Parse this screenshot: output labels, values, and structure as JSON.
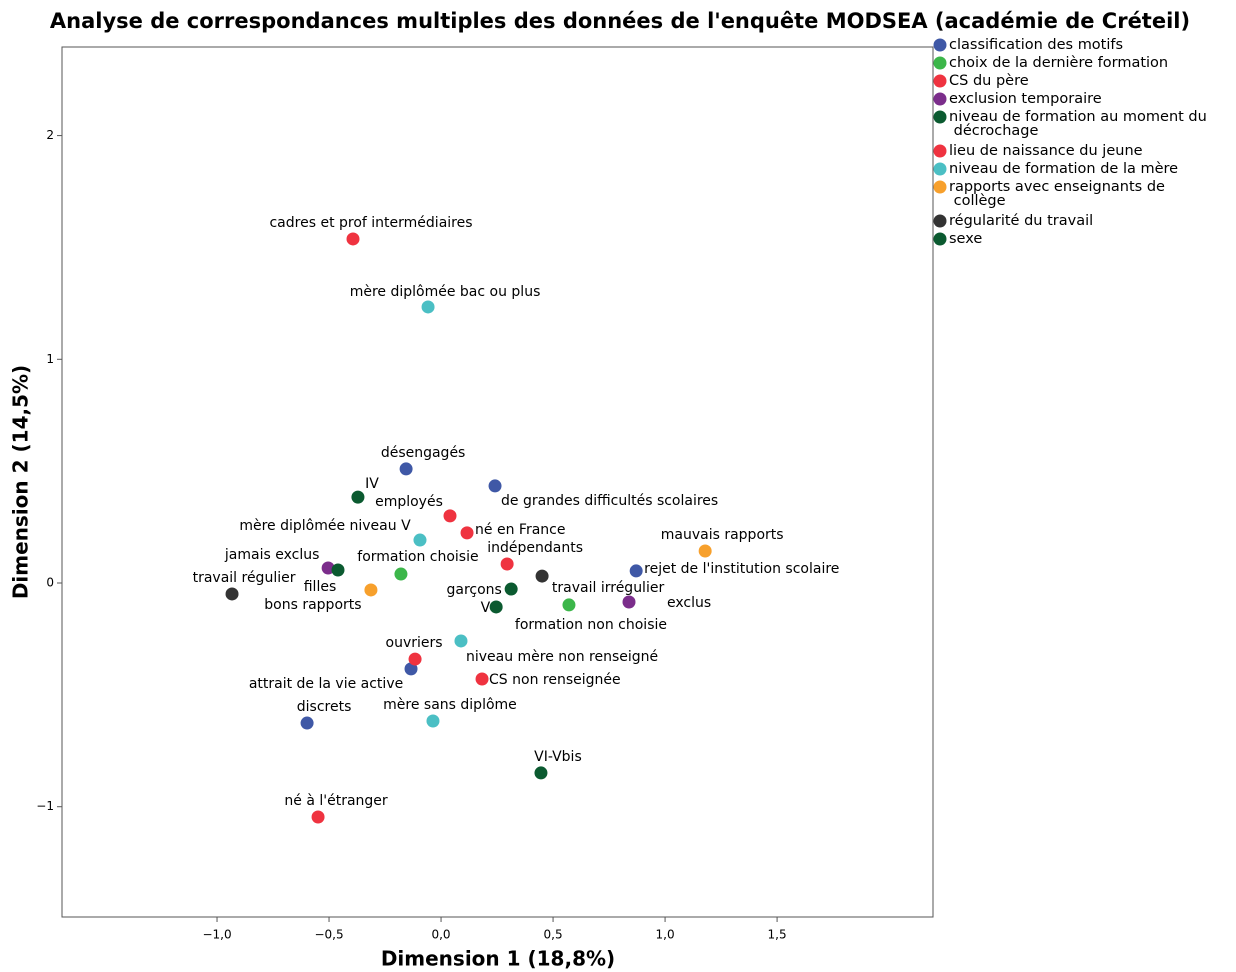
{
  "chart_data": {
    "type": "scatter",
    "title": "Analyse de correspondances multiples des données de l'enquête MODSEA (académie de Créteil)",
    "x_label": "Dimension 1 (18,8%)",
    "y_label": "Dimension 2 (14,5%)",
    "xlim": [
      -1.692,
      2.196
    ],
    "ylim": [
      -1.493,
      2.396
    ],
    "xticks": [
      {
        "value": -1,
        "label": "−1,0"
      },
      {
        "value": -0.5,
        "label": "−0,5"
      },
      {
        "value": 0,
        "label": "0,0"
      },
      {
        "value": 0.5,
        "label": "0,5"
      },
      {
        "value": 1,
        "label": "1,0"
      },
      {
        "value": 1.5,
        "label": "1,5"
      }
    ],
    "yticks": [
      {
        "value": -1,
        "label": "−1"
      },
      0,
      1,
      2
    ],
    "legend": "right",
    "series": [
      {
        "name": "classification des motifs",
        "color": "#3f58a6",
        "x": [
          -0.156,
          0.241,
          0.871,
          -0.134,
          -0.598
        ],
        "y": [
          0.51,
          0.434,
          0.054,
          -0.384,
          -0.626
        ],
        "labels": [
          "désengagés",
          "de grandes difficultés scolaires",
          "rejet de l'institution scolaire",
          "attrait de la vie active",
          "discrets"
        ]
      },
      {
        "name": "choix de la dernière formation",
        "color": "#3cb64a",
        "x": [
          -0.179,
          0.571
        ],
        "y": [
          0.04,
          -0.098
        ],
        "labels": [
          "formation choisie",
          "formation non choisie"
        ]
      },
      {
        "name": "CS du père",
        "color": "#ef3340",
        "x": [
          -0.393,
          0.04,
          0.295,
          -0.116,
          0.183
        ],
        "y": [
          1.538,
          0.3,
          0.085,
          -0.34,
          -0.429
        ],
        "labels": [
          "cadres et prof intermédiaires",
          "employés",
          "indépendants",
          "ouvriers",
          "CS non renseignée"
        ]
      },
      {
        "name": "exclusion temporaire",
        "color": "#7b2d8b",
        "x": [
          -0.504,
          0.839
        ],
        "y": [
          0.067,
          -0.085
        ],
        "labels": [
          "jamais exclus",
          "exclus"
        ]
      },
      {
        "name": "niveau de formation au moment du décrochage",
        "color": "#0b5a30",
        "x": [
          -0.371,
          0.246,
          0.446
        ],
        "y": [
          0.384,
          -0.107,
          -0.849
        ],
        "labels": [
          "IV",
          "V",
          "VI-Vbis"
        ]
      },
      {
        "name": "lieu de naissance du jeune",
        "color": "#ef3340",
        "x": [
          0.116,
          -0.549
        ],
        "y": [
          0.224,
          -1.046
        ],
        "labels": [
          "né en France",
          "né à l'étranger"
        ]
      },
      {
        "name": "niveau de formation de la mère",
        "color": "#4bbfc4",
        "x": [
          -0.058,
          -0.094,
          0.089,
          -0.036
        ],
        "y": [
          1.234,
          0.192,
          -0.259,
          -0.617
        ],
        "labels": [
          "mère diplômée bac ou plus",
          "mère diplômée niveau V",
          "niveau mère non renseigné",
          "mère sans diplôme"
        ]
      },
      {
        "name": "rapports avec enseignants de collège",
        "color": "#f7a02c",
        "x": [
          1.179,
          -0.313
        ],
        "y": [
          0.143,
          -0.031
        ],
        "labels": [
          "mauvais rapports",
          "bons rapports"
        ]
      },
      {
        "name": "régularité du travail",
        "color": "#333333",
        "x": [
          -0.933,
          0.451
        ],
        "y": [
          -0.049,
          0.031
        ],
        "labels": [
          "travail régulier",
          "travail irrégulier"
        ]
      },
      {
        "name": "sexe",
        "color": "#0b5a30",
        "x": [
          -0.46,
          0.313
        ],
        "y": [
          0.058,
          -0.027
        ],
        "labels": [
          "filles",
          "garçons"
        ]
      }
    ]
  }
}
